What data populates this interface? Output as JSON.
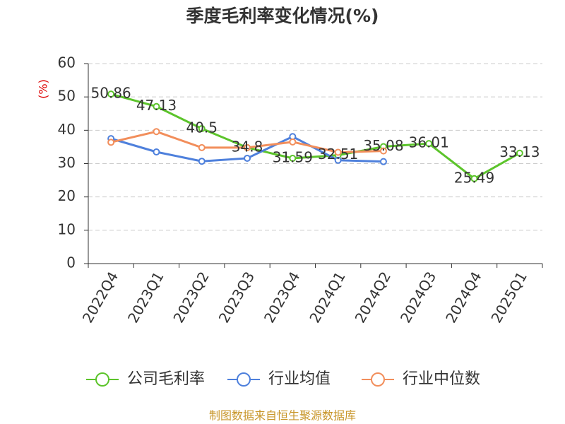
{
  "chart_data": {
    "type": "line",
    "title": "季度毛利率变化情况(%)",
    "y_label": "(%)",
    "categories": [
      "2022Q4",
      "2023Q1",
      "2023Q2",
      "2023Q3",
      "2023Q4",
      "2024Q1",
      "2024Q2",
      "2024Q3",
      "2024Q4",
      "2025Q1"
    ],
    "series": [
      {
        "name": "公司毛利率",
        "color": "#5cc42b",
        "values": [
          50.86,
          47.13,
          40.5,
          34.8,
          31.59,
          32.51,
          35.08,
          36.01,
          25.49,
          33.13
        ],
        "show_labels": true
      },
      {
        "name": "行业均值",
        "color": "#4e80dc",
        "values": [
          37.5,
          33.5,
          30.7,
          31.6,
          38.1,
          31.0,
          30.6,
          null,
          null,
          null
        ]
      },
      {
        "name": "行业中位数",
        "color": "#f28e5b",
        "values": [
          36.4,
          39.6,
          34.8,
          34.8,
          36.5,
          33.4,
          33.8,
          null,
          null,
          null
        ]
      }
    ],
    "ylim": [
      0,
      60
    ],
    "yticks": [
      0,
      10,
      20,
      30,
      40,
      50,
      60
    ],
    "grid": true,
    "source": "制图数据来自恒生聚源数据库"
  }
}
